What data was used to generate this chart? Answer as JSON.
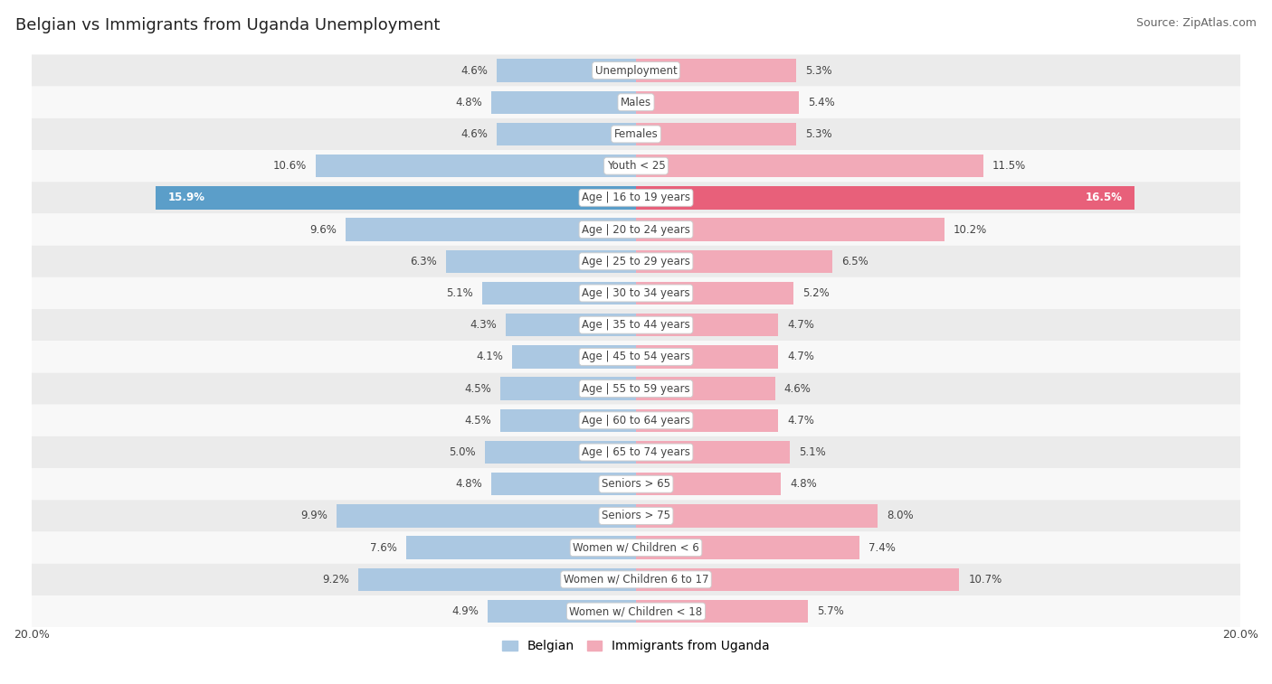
{
  "title": "Belgian vs Immigrants from Uganda Unemployment",
  "source": "Source: ZipAtlas.com",
  "categories": [
    "Unemployment",
    "Males",
    "Females",
    "Youth < 25",
    "Age | 16 to 19 years",
    "Age | 20 to 24 years",
    "Age | 25 to 29 years",
    "Age | 30 to 34 years",
    "Age | 35 to 44 years",
    "Age | 45 to 54 years",
    "Age | 55 to 59 years",
    "Age | 60 to 64 years",
    "Age | 65 to 74 years",
    "Seniors > 65",
    "Seniors > 75",
    "Women w/ Children < 6",
    "Women w/ Children 6 to 17",
    "Women w/ Children < 18"
  ],
  "belgian": [
    4.6,
    4.8,
    4.6,
    10.6,
    15.9,
    9.6,
    6.3,
    5.1,
    4.3,
    4.1,
    4.5,
    4.5,
    5.0,
    4.8,
    9.9,
    7.6,
    9.2,
    4.9
  ],
  "uganda": [
    5.3,
    5.4,
    5.3,
    11.5,
    16.5,
    10.2,
    6.5,
    5.2,
    4.7,
    4.7,
    4.6,
    4.7,
    5.1,
    4.8,
    8.0,
    7.4,
    10.7,
    5.7
  ],
  "max_val": 20.0,
  "belgian_color": "#abc8e2",
  "uganda_color": "#f2aab8",
  "belgian_highlight": "#5b9ec9",
  "uganda_highlight": "#e8607a",
  "row_bg_light": "#ebebeb",
  "row_bg_white": "#f8f8f8",
  "bar_height": 0.72,
  "label_fontsize": 8.5,
  "cat_fontsize": 8.5,
  "legend_belgian": "Belgian",
  "legend_uganda": "Immigrants from Uganda",
  "highlight_row": "Age | 16 to 19 years",
  "title_fontsize": 13,
  "source_fontsize": 9
}
